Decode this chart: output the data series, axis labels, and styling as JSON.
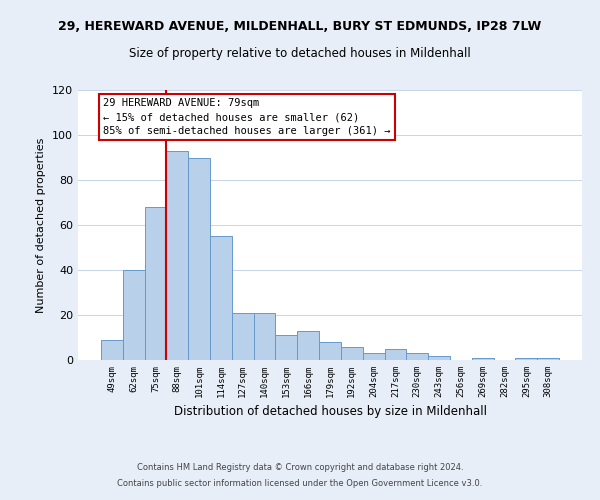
{
  "title": "29, HEREWARD AVENUE, MILDENHALL, BURY ST EDMUNDS, IP28 7LW",
  "subtitle": "Size of property relative to detached houses in Mildenhall",
  "xlabel": "Distribution of detached houses by size in Mildenhall",
  "ylabel": "Number of detached properties",
  "bar_labels": [
    "49sqm",
    "62sqm",
    "75sqm",
    "88sqm",
    "101sqm",
    "114sqm",
    "127sqm",
    "140sqm",
    "153sqm",
    "166sqm",
    "179sqm",
    "192sqm",
    "204sqm",
    "217sqm",
    "230sqm",
    "243sqm",
    "256sqm",
    "269sqm",
    "282sqm",
    "295sqm",
    "308sqm"
  ],
  "bar_values": [
    9,
    40,
    68,
    93,
    90,
    55,
    21,
    21,
    11,
    13,
    8,
    6,
    3,
    5,
    3,
    2,
    0,
    1,
    0,
    1,
    1
  ],
  "bar_color": "#b8d0ea",
  "bar_edge_color": "#6699cc",
  "ylim": [
    0,
    120
  ],
  "yticks": [
    0,
    20,
    40,
    60,
    80,
    100,
    120
  ],
  "vline_color": "#cc0000",
  "annotation_title": "29 HEREWARD AVENUE: 79sqm",
  "annotation_line1": "← 15% of detached houses are smaller (62)",
  "annotation_line2": "85% of semi-detached houses are larger (361) →",
  "annotation_box_color": "#ffffff",
  "annotation_box_edge": "#cc0000",
  "footer1": "Contains HM Land Registry data © Crown copyright and database right 2024.",
  "footer2": "Contains public sector information licensed under the Open Government Licence v3.0.",
  "bg_color": "#e8eef8",
  "plot_bg_color": "#ffffff",
  "grid_color": "#c8d4e8"
}
